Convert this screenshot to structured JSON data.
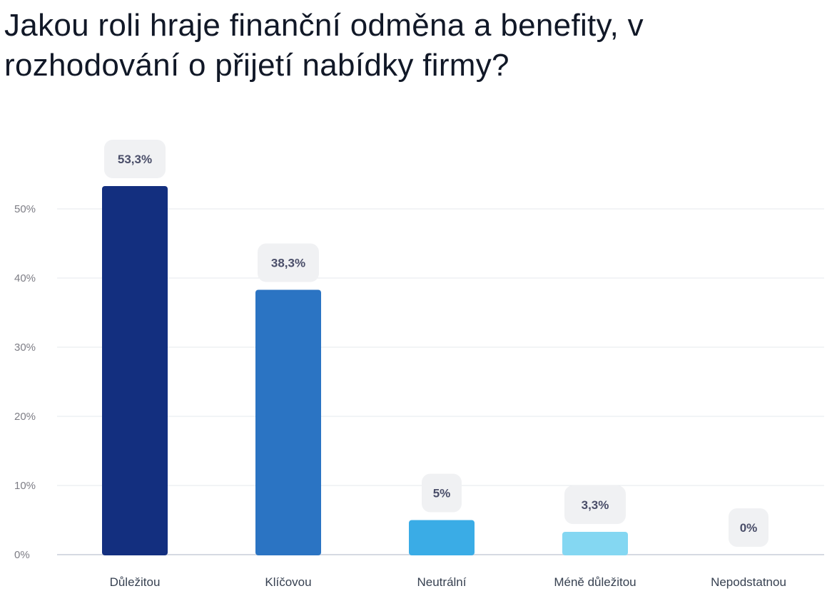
{
  "chart_data": {
    "type": "bar",
    "title": "Jakou roli hraje finanční odměna a benefity, v rozhodování o přijetí nabídky firmy?",
    "categories": [
      "Důležitou",
      "Klíčovou",
      "Neutrální",
      "Méně důležitou",
      "Nepodstatnou"
    ],
    "values": [
      53.3,
      38.3,
      5,
      3.3,
      0
    ],
    "value_labels": [
      "53,3%",
      "38,3%",
      "5%",
      "3,3%",
      "0%"
    ],
    "colors": [
      "#132f7f",
      "#2b74c3",
      "#3aace6",
      "#84d7f2",
      "#84d7f2"
    ],
    "yticks": [
      0,
      10,
      20,
      30,
      40,
      50
    ],
    "ytick_labels": [
      "0%",
      "10%",
      "20%",
      "30%",
      "40%",
      "50%"
    ],
    "ylim": [
      0,
      50
    ],
    "xlabel": "",
    "ylabel": "",
    "grid": true
  }
}
